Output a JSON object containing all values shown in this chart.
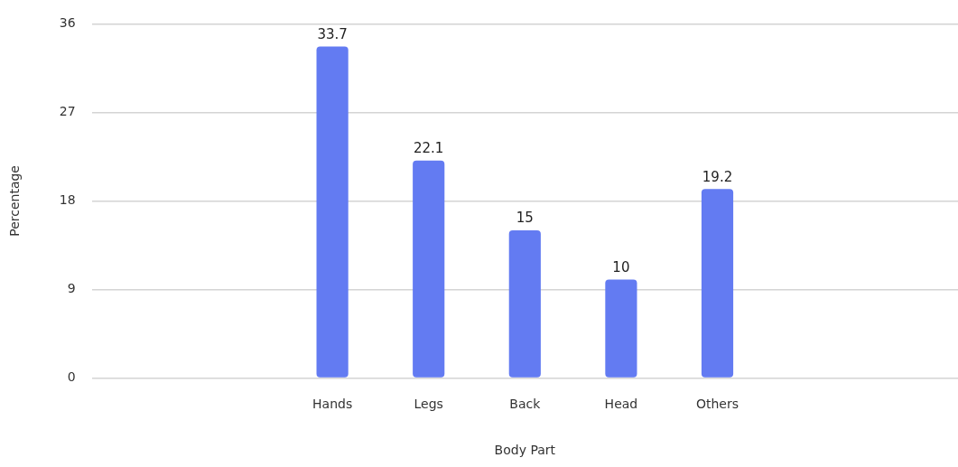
{
  "chart_data": {
    "type": "bar",
    "xlabel": "Body Part",
    "ylabel": "Percentage",
    "categories": [
      null,
      null,
      "Hands",
      "Legs",
      "Back",
      "Head",
      "Others",
      null,
      null
    ],
    "values": [
      null,
      null,
      33.7,
      22.1,
      15,
      10,
      19.2,
      null,
      null
    ],
    "color": "#637bf2",
    "ylim": [
      0,
      36
    ],
    "yticks": [
      0,
      9,
      18,
      27,
      36
    ],
    "grid": "y",
    "legend": false,
    "data_labels": true
  }
}
